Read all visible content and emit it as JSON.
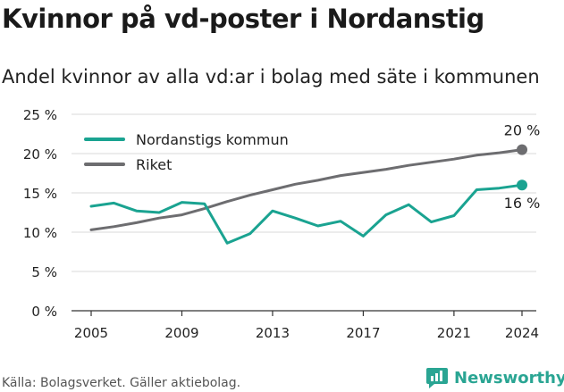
{
  "header": {
    "title": "Kvinnor på vd-poster i Nordanstig",
    "subtitle": "Andel kvinnor av alla vd:ar i bolag med säte i kommunen"
  },
  "footer": {
    "source": "Källa: Bolagsverket. Gäller aktiebolag.",
    "brand": "Newsworthy",
    "brand_icon": "newsworthy-logo-icon"
  },
  "colors": {
    "nordanstig": "#1aa391",
    "riket": "#6d6d70",
    "grid": "#d9d9d9",
    "axis": "#333333"
  },
  "chart_data": {
    "type": "line",
    "x": [
      2005,
      2006,
      2007,
      2008,
      2009,
      2010,
      2011,
      2012,
      2013,
      2014,
      2015,
      2016,
      2017,
      2018,
      2019,
      2020,
      2021,
      2022,
      2023,
      2024
    ],
    "series": [
      {
        "name": "Nordanstigs kommun",
        "values": [
          13.3,
          13.7,
          12.7,
          12.5,
          13.8,
          13.6,
          8.6,
          9.8,
          12.7,
          11.8,
          10.8,
          11.4,
          9.5,
          12.2,
          13.5,
          11.3,
          12.1,
          15.4,
          15.6,
          16.0
        ],
        "end_label": "16 %"
      },
      {
        "name": "Riket",
        "values": [
          10.3,
          10.7,
          11.2,
          11.8,
          12.2,
          13.0,
          13.9,
          14.7,
          15.4,
          16.1,
          16.6,
          17.2,
          17.6,
          18.0,
          18.5,
          18.9,
          19.3,
          19.8,
          20.1,
          20.5
        ],
        "end_label": "20 %"
      }
    ],
    "xticks": [
      2005,
      2009,
      2013,
      2017,
      2021,
      2024
    ],
    "xtick_labels": [
      "2005",
      "2009",
      "2013",
      "2017",
      "2021",
      "2024"
    ],
    "yticks": [
      0,
      5,
      10,
      15,
      20,
      25
    ],
    "ytick_labels": [
      "0 %",
      "5 %",
      "10 %",
      "15 %",
      "20 %",
      "25 %"
    ],
    "ylim": [
      0,
      25
    ],
    "grid": "horizontal",
    "legend_position": "top-left"
  }
}
